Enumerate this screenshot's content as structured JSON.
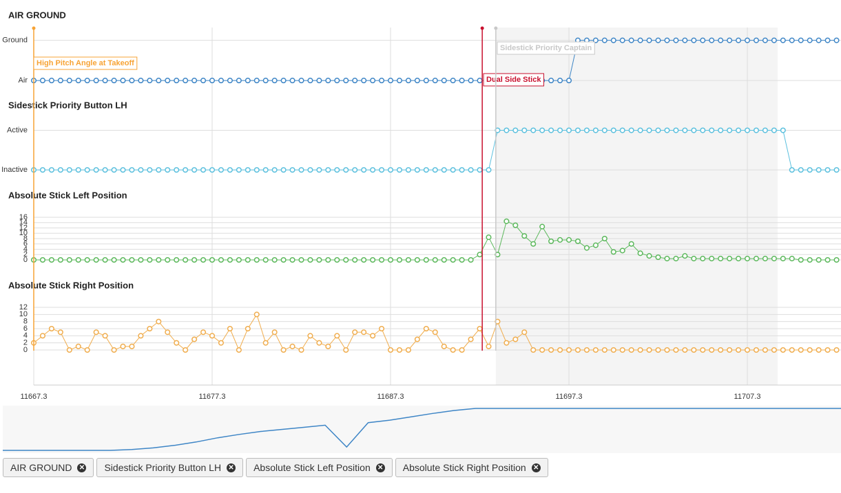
{
  "chart_data": {
    "type": "line",
    "x": [
      11667.3,
      11667.8,
      11668.3,
      11668.8,
      11669.3,
      11669.8,
      11670.3,
      11670.8,
      11671.3,
      11671.8,
      11672.3,
      11672.8,
      11673.3,
      11673.8,
      11674.3,
      11674.8,
      11675.3,
      11675.8,
      11676.3,
      11676.8,
      11677.3,
      11677.8,
      11678.3,
      11678.8,
      11679.3,
      11679.8,
      11680.3,
      11680.8,
      11681.3,
      11681.8,
      11682.3,
      11682.8,
      11683.3,
      11683.8,
      11684.3,
      11684.8,
      11685.3,
      11685.8,
      11686.3,
      11686.8,
      11687.3,
      11687.8,
      11688.3,
      11688.8,
      11689.3,
      11689.8,
      11690.3,
      11690.8,
      11691.3,
      11691.8,
      11692.3,
      11692.8,
      11693.3,
      11693.8,
      11694.3,
      11694.8,
      11695.3,
      11695.8,
      11696.3,
      11696.8,
      11697.3,
      11697.8,
      11698.3,
      11698.8,
      11699.3,
      11699.8,
      11700.3,
      11700.8,
      11701.3,
      11701.8,
      11702.3,
      11702.8,
      11703.3,
      11703.8,
      11704.3,
      11704.8,
      11705.3,
      11705.8,
      11706.3,
      11706.8,
      11707.3,
      11707.8,
      11708.3,
      11708.8,
      11709.3,
      11709.8,
      11710.3,
      11710.8,
      11711.3,
      11711.8,
      11712.3
    ],
    "xlim": [
      11667.3,
      11712.55
    ],
    "xticks": [
      11667.3,
      11677.3,
      11687.3,
      11697.3,
      11707.3
    ],
    "panels": [
      {
        "title": "AIR GROUND",
        "color": "#3d85c6",
        "ylim": [
          -0.05,
          1.2
        ],
        "yticks": [
          {
            "value": 0,
            "label": "Air"
          },
          {
            "value": 1,
            "label": "Ground"
          }
        ],
        "values": [
          0,
          0,
          0,
          0,
          0,
          0,
          0,
          0,
          0,
          0,
          0,
          0,
          0,
          0,
          0,
          0,
          0,
          0,
          0,
          0,
          0,
          0,
          0,
          0,
          0,
          0,
          0,
          0,
          0,
          0,
          0,
          0,
          0,
          0,
          0,
          0,
          0,
          0,
          0,
          0,
          0,
          0,
          0,
          0,
          0,
          0,
          0,
          0,
          0,
          0,
          0,
          0,
          0,
          0,
          0,
          0,
          0,
          0,
          0,
          0,
          0,
          1,
          1,
          1,
          1,
          1,
          1,
          1,
          1,
          1,
          1,
          1,
          1,
          1,
          1,
          1,
          1,
          1,
          1,
          1,
          1,
          1,
          1,
          1,
          1,
          1,
          1,
          1,
          1,
          1,
          1
        ]
      },
      {
        "title": "Sidestick Priority Button LH",
        "color": "#5bc0de",
        "ylim": [
          -0.05,
          1.2
        ],
        "yticks": [
          {
            "value": 0,
            "label": "Inactive"
          },
          {
            "value": 1,
            "label": "Active"
          }
        ],
        "values": [
          0,
          0,
          0,
          0,
          0,
          0,
          0,
          0,
          0,
          0,
          0,
          0,
          0,
          0,
          0,
          0,
          0,
          0,
          0,
          0,
          0,
          0,
          0,
          0,
          0,
          0,
          0,
          0,
          0,
          0,
          0,
          0,
          0,
          0,
          0,
          0,
          0,
          0,
          0,
          0,
          0,
          0,
          0,
          0,
          0,
          0,
          0,
          0,
          0,
          0,
          0,
          0,
          1,
          1,
          1,
          1,
          1,
          1,
          1,
          1,
          1,
          1,
          1,
          1,
          1,
          1,
          1,
          1,
          1,
          1,
          1,
          1,
          1,
          1,
          1,
          1,
          1,
          1,
          1,
          1,
          1,
          1,
          1,
          1,
          1,
          0,
          0,
          0,
          0,
          0,
          0
        ]
      },
      {
        "title": "Absolute Stick Left Position",
        "color": "#5cb85c",
        "ylim": [
          0,
          16
        ],
        "yticks": [
          0,
          2,
          4,
          6,
          8,
          10,
          12,
          14,
          16
        ],
        "values": [
          0,
          0,
          0,
          0,
          0,
          0,
          0,
          0,
          0,
          0,
          0,
          0,
          0,
          0,
          0,
          0,
          0,
          0,
          0,
          0,
          0,
          0,
          0,
          0,
          0,
          0,
          0,
          0,
          0,
          0,
          0,
          0,
          0,
          0,
          0,
          0,
          0,
          0,
          0,
          0,
          0,
          0,
          0,
          0,
          0,
          0,
          0,
          0,
          0,
          0,
          2,
          8.5,
          2,
          14.5,
          13,
          9,
          6,
          12.5,
          7,
          7.5,
          7.5,
          7,
          4.5,
          5.5,
          8,
          3,
          3.5,
          6,
          2.5,
          1.5,
          1,
          0.5,
          0.5,
          1.5,
          0.5,
          0.5,
          0.5,
          0.5,
          0.5,
          0.5,
          0.5,
          0.5,
          0.5,
          0.5,
          0.5,
          0.5,
          0,
          0,
          0,
          0,
          0
        ]
      },
      {
        "title": "Absolute Stick Right Position",
        "color": "#f0ad4e",
        "ylim": [
          0,
          12
        ],
        "yticks": [
          0,
          2,
          4,
          6,
          8,
          10,
          12
        ],
        "values": [
          2,
          4,
          6,
          5,
          0,
          1,
          0,
          5,
          4,
          0,
          1,
          1,
          4,
          6,
          8,
          5,
          2,
          0,
          3,
          5,
          4,
          2,
          6,
          0,
          6,
          10,
          2,
          5,
          0,
          1,
          0,
          4,
          2,
          1,
          4,
          0,
          5,
          5,
          4,
          6,
          0,
          0,
          0,
          3,
          6,
          5,
          1,
          0,
          0,
          3,
          6,
          1,
          8,
          2,
          3,
          5,
          0,
          0,
          0,
          0,
          0,
          0,
          0,
          0,
          0,
          0,
          0,
          0,
          0,
          0,
          0,
          0,
          0,
          0,
          0,
          0,
          0,
          0,
          0,
          0,
          0,
          0,
          0,
          0,
          0,
          0,
          0,
          0,
          0,
          0,
          0
        ]
      }
    ],
    "band": [
      11693.2,
      11709
    ],
    "annotations": [
      {
        "label": "High Pitch Angle at Takeoff",
        "x": 11667.3,
        "color": "#f7a335"
      },
      {
        "label": "Dual Side Stick",
        "x": 11692.44,
        "color": "#c8102e"
      },
      {
        "label": "Sidestick Priority Captain",
        "x": 11693.2,
        "color": "#c8c8c8"
      }
    ],
    "navigator": {
      "color": "#3d85c6",
      "ylim": [
        0,
        1
      ],
      "values": [
        0,
        0,
        0,
        0,
        0,
        0,
        0.02,
        0.06,
        0.12,
        0.2,
        0.3,
        0.38,
        0.45,
        0.5,
        0.55,
        0.6,
        0.08,
        0.66,
        0.72,
        0.8,
        0.88,
        0.95,
        1,
        1,
        1,
        1,
        1,
        1,
        1,
        1,
        1,
        1,
        1,
        1,
        1,
        1,
        1,
        1,
        1,
        1
      ]
    }
  },
  "tabs": [
    "AIR GROUND",
    "Sidestick Priority Button LH",
    "Absolute Stick Left Position",
    "Absolute Stick Right Position"
  ]
}
